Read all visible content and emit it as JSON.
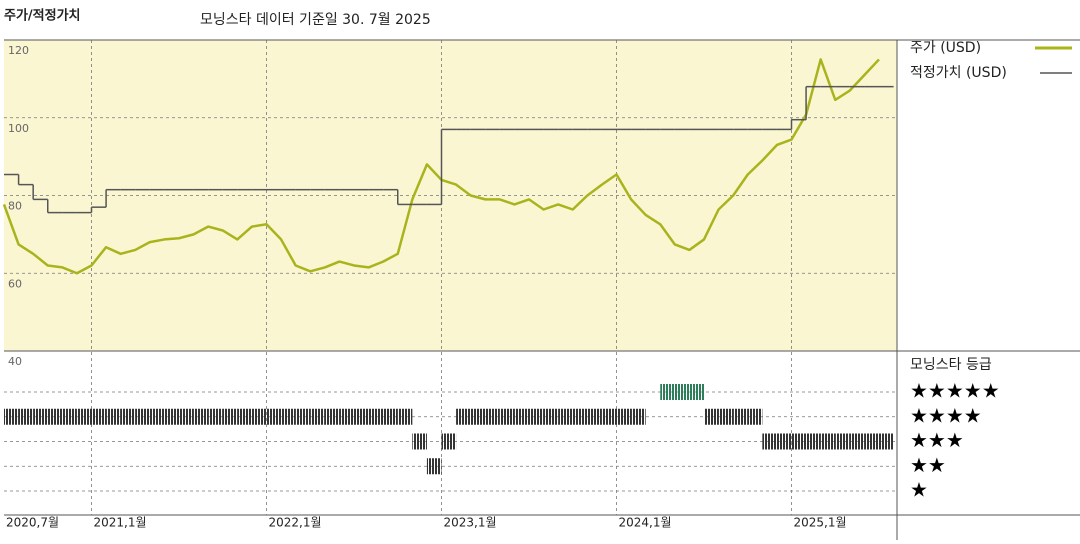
{
  "chart_data": {
    "type": "line",
    "title": "주가/적정가치",
    "subtitle": "모닝스타 데이터 기준일 30. 7월 2025",
    "x": [
      "2020-07",
      "2020-08",
      "2020-09",
      "2020-10",
      "2020-11",
      "2020-12",
      "2021-01",
      "2021-02",
      "2021-03",
      "2021-04",
      "2021-05",
      "2021-06",
      "2021-07",
      "2021-08",
      "2021-09",
      "2021-10",
      "2021-11",
      "2021-12",
      "2022-01",
      "2022-02",
      "2022-03",
      "2022-04",
      "2022-05",
      "2022-06",
      "2022-07",
      "2022-08",
      "2022-09",
      "2022-10",
      "2022-11",
      "2022-12",
      "2023-01",
      "2023-02",
      "2023-03",
      "2023-04",
      "2023-05",
      "2023-06",
      "2023-07",
      "2023-08",
      "2023-09",
      "2023-10",
      "2023-11",
      "2023-12",
      "2024-01",
      "2024-02",
      "2024-03",
      "2024-04",
      "2024-05",
      "2024-06",
      "2024-07",
      "2024-08",
      "2024-09",
      "2024-10",
      "2024-11",
      "2024-12",
      "2025-01",
      "2025-02",
      "2025-03",
      "2025-04",
      "2025-05",
      "2025-06",
      "2025-07"
    ],
    "xticks": [
      {
        "value": "2020-07",
        "label": "2020,7월"
      },
      {
        "value": "2021-01",
        "label": "2021,1월"
      },
      {
        "value": "2022-01",
        "label": "2022,1월"
      },
      {
        "value": "2023-01",
        "label": "2023,1월"
      },
      {
        "value": "2024-01",
        "label": "2024,1월"
      },
      {
        "value": "2025-01",
        "label": "2025,1월"
      }
    ],
    "ylim": [
      40,
      120
    ],
    "yticks": [
      120,
      100,
      80,
      60,
      40
    ],
    "grid": true,
    "series": [
      {
        "name": "주가 (USD)",
        "color": "#a9b41d",
        "values": [
          77.7,
          67.4,
          65,
          62,
          61.5,
          60,
          62,
          66.7,
          65,
          66,
          68,
          68.7,
          69,
          70,
          72,
          71,
          68.7,
          72,
          72.6,
          68.7,
          62,
          60.5,
          61.5,
          63,
          62,
          61.5,
          63,
          65,
          79,
          88,
          84,
          82.8,
          80,
          79,
          79,
          77.7,
          79,
          76.4,
          77.7,
          76.4,
          80,
          82.8,
          85.4,
          79,
          75,
          72.6,
          67.4,
          66,
          68.7,
          76.4,
          80,
          85.4,
          89,
          93,
          94.4,
          100.8,
          115,
          104.6,
          107,
          111,
          115
        ]
      },
      {
        "name": "적정가치 (USD)",
        "color": "#555555",
        "step": true,
        "values": [
          85.4,
          82.8,
          79,
          75.6,
          75.6,
          75.6,
          77,
          81.5,
          81.5,
          81.5,
          81.5,
          81.5,
          81.5,
          81.5,
          81.5,
          81.5,
          81.5,
          81.5,
          81.5,
          81.5,
          81.5,
          81.5,
          81.5,
          81.5,
          81.5,
          81.5,
          81.5,
          77.7,
          77.7,
          77.7,
          97,
          97,
          97,
          97,
          97,
          97,
          97,
          97,
          97,
          97,
          97,
          97,
          97,
          97,
          97,
          97,
          97,
          97,
          97,
          97,
          97,
          97,
          97,
          97,
          99.5,
          108,
          108,
          108,
          108,
          108,
          108
        ]
      }
    ],
    "rating": {
      "title": "모닝스타 등급",
      "levels": [
        5,
        4,
        3,
        2,
        1
      ],
      "level_labels": [
        "★★★★★",
        "★★★★",
        "★★★",
        "★★",
        "★"
      ],
      "colors": {
        "5": "#2e7d5b",
        "other": "#333333"
      },
      "values": [
        4,
        4,
        4,
        4,
        4,
        4,
        4,
        4,
        4,
        4,
        4,
        4,
        4,
        4,
        4,
        4,
        4,
        4,
        4,
        4,
        4,
        4,
        4,
        4,
        4,
        4,
        4,
        4,
        3,
        2,
        3,
        4,
        4,
        4,
        4,
        4,
        4,
        4,
        4,
        4,
        4,
        4,
        4,
        4,
        null,
        5,
        5,
        5,
        4,
        4,
        4,
        4,
        3,
        3,
        3,
        3,
        3,
        3,
        3,
        3,
        3
      ]
    }
  }
}
